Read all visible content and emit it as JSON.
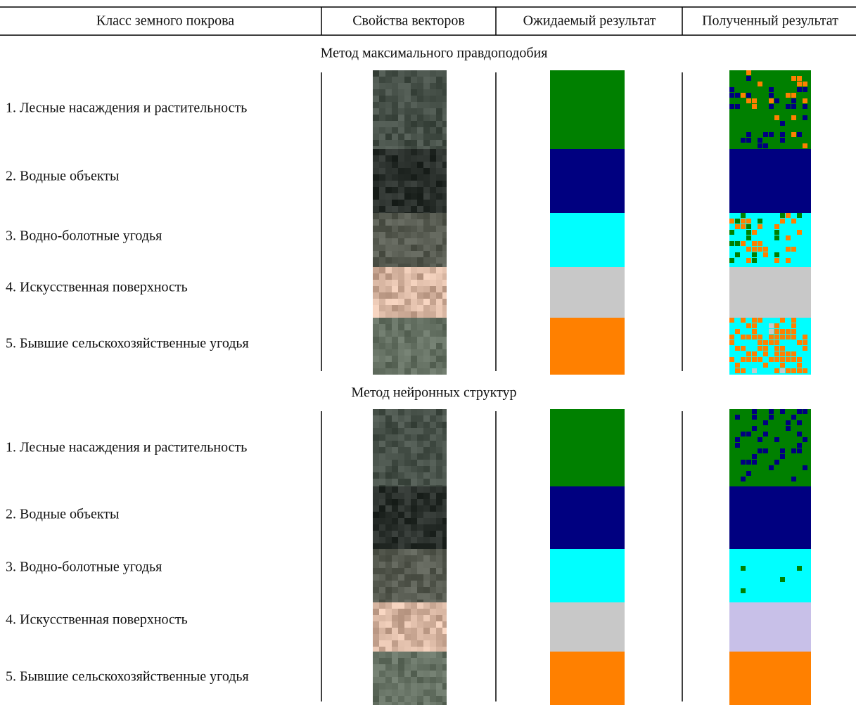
{
  "header": {
    "columns": [
      "Класс земного покрова",
      "Свойства векторов",
      "Ожидаемый результат",
      "Полученный результат"
    ]
  },
  "sections": [
    {
      "title": "Метод максимального правдоподобия",
      "rows": [
        "1. Лесные насаждения и растительность",
        "2. Водные объекты",
        "3. Водно-болотные угодья",
        "4. Искусственная поверхность",
        "5. Бывшие сельскохозяйственные угодья"
      ]
    },
    {
      "title": "Метод нейронных структур",
      "rows": [
        "1. Лесные насаждения и растительность",
        "2. Водные объекты",
        "3. Водно-болотные угодья",
        "4. Искусственная поверхность",
        "5. Бывшие сельскохозяйственные угодья"
      ]
    }
  ]
}
